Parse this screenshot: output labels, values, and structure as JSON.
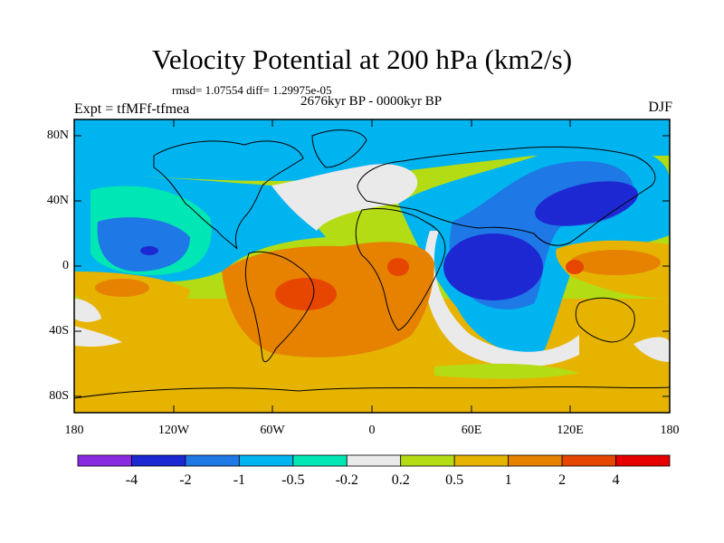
{
  "title": "Velocity Potential at 200 hPa (km2/s)",
  "stats_line": "rmsd= 1.07554 diff= 1.29975e-05",
  "period": "2676kyr BP - 0000kyr BP",
  "experiment": "Expt = tfMFf-tfmea",
  "season": "DJF",
  "lat_ticks": [
    "80N",
    "40N",
    "0",
    "40S",
    "80S"
  ],
  "lon_ticks": [
    "180",
    "120W",
    "60W",
    "0",
    "60E",
    "120E",
    "180"
  ],
  "colorbar": {
    "labels": [
      "-4",
      "-2",
      "-1",
      "-0.5",
      "-0.2",
      "0.2",
      "0.5",
      "1",
      "2",
      "4"
    ],
    "colors": [
      "#8a2be2",
      "#1e28d2",
      "#1e78e6",
      "#00b4f0",
      "#00e6b4",
      "#eaeaea",
      "#b4dc14",
      "#e6b400",
      "#e68200",
      "#e64600",
      "#e60000"
    ]
  }
}
